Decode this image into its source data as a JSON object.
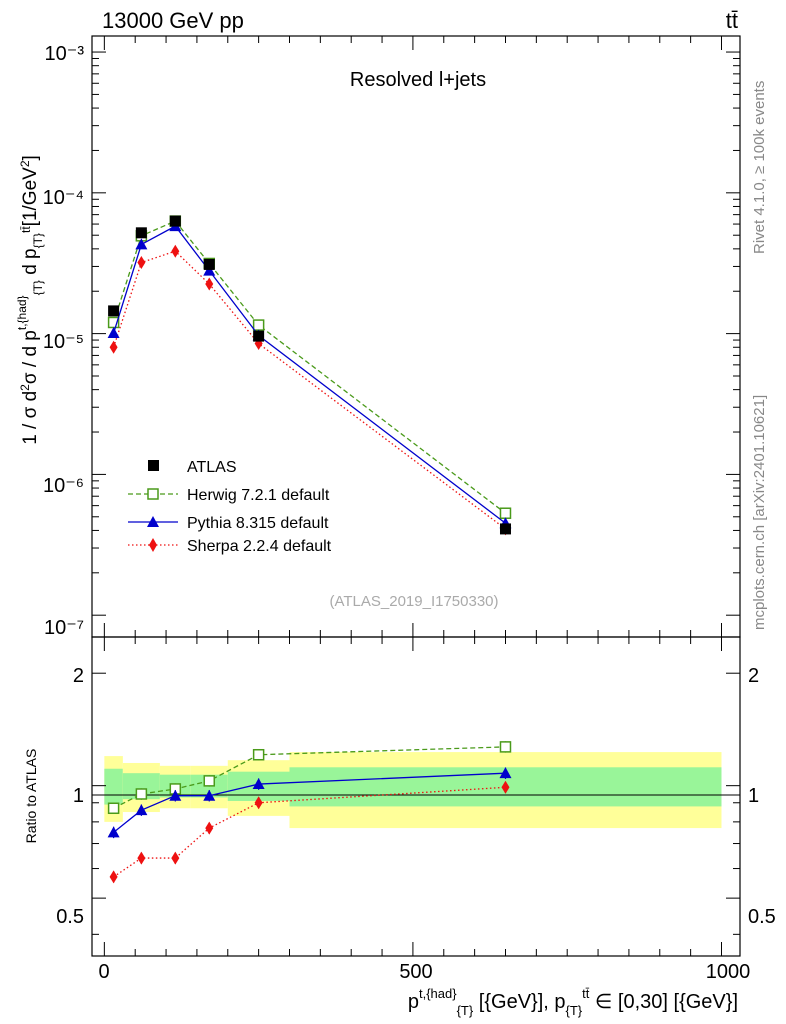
{
  "header": {
    "energy": "13000 GeV pp",
    "process": "tt̄",
    "title": "Resolved l+jets",
    "watermark": "(ATLAS_2019_I1750330)",
    "side_rivet": "Rivet 4.1.0, ≥ 100k events",
    "side_mcplots": "mcplots.cern.ch [arXiv:2401.10621]"
  },
  "axes": {
    "ylabel": "1 / σ d²σ / d p_T^{t,had} d p_T^{tt̄} [1/GeV²]",
    "ratio_ylabel": "Ratio to ATLAS",
    "xlabel": "p_T^{t,had} [GeV], p_T^{tt̄} ∈ [0,30] [GeV]",
    "main_yticks": [
      "10⁻³",
      "10⁻⁴",
      "10⁻⁵",
      "10⁻⁶",
      "10⁻⁷"
    ],
    "ratio_yticks": [
      "2",
      "1",
      "0.5"
    ],
    "xticks": [
      "0",
      "500",
      "1000"
    ]
  },
  "legend": {
    "atlas": "ATLAS",
    "herwig": "Herwig 7.2.1 default",
    "pythia": "Pythia 8.315 default",
    "sherpa": "Sherpa 2.2.4 default"
  },
  "chart_data": {
    "type": "scatter",
    "x_range": [
      -20,
      1030
    ],
    "y_range_main": [
      7e-08,
      0.0013
    ],
    "y_scale_main": "log",
    "y_range_ratio": [
      0.35,
      2.5
    ],
    "y_scale_ratio": "log",
    "bins": [
      [
        0,
        30
      ],
      [
        30,
        90
      ],
      [
        90,
        140
      ],
      [
        140,
        200
      ],
      [
        200,
        300
      ],
      [
        300,
        1000
      ]
    ],
    "x": [
      15,
      60,
      115,
      170,
      250,
      650
    ],
    "series": [
      {
        "name": "ATLAS",
        "values": [
          1.45e-05,
          5.2e-05,
          6.3e-05,
          3.1e-05,
          9.6e-06,
          4.1e-07
        ],
        "color": "#000000",
        "marker": "square",
        "line": "none"
      },
      {
        "name": "Herwig 7.2.1 default",
        "values": [
          1.2e-05,
          4.95e-05,
          6.3e-05,
          3.15e-05,
          1.15e-05,
          5.3e-07
        ],
        "ratio": [
          0.87,
          0.95,
          0.98,
          1.03,
          1.21,
          1.27
        ],
        "color": "#4a9a1a",
        "marker": "open-square",
        "line": "dashed"
      },
      {
        "name": "Pythia 8.315 default",
        "values": [
          1.01e-05,
          4.3e-05,
          5.8e-05,
          2.8e-05,
          9.7e-06,
          4.5e-07
        ],
        "ratio": [
          0.75,
          0.86,
          0.94,
          0.94,
          1.01,
          1.08
        ],
        "color": "#0000cc",
        "marker": "triangle",
        "line": "solid"
      },
      {
        "name": "Sherpa 2.2.4 default",
        "values": [
          8e-06,
          3.2e-05,
          3.85e-05,
          2.25e-05,
          8.5e-06,
          4.1e-07
        ],
        "ratio": [
          0.57,
          0.64,
          0.64,
          0.77,
          0.9,
          0.99
        ],
        "color": "#ee1111",
        "marker": "diamond",
        "line": "dotted"
      }
    ],
    "ratio_band_stat": [
      0.11,
      0.08,
      0.07,
      0.07,
      0.09,
      0.12
    ],
    "ratio_band_total": [
      0.2,
      0.15,
      0.13,
      0.13,
      0.17,
      0.23
    ]
  }
}
